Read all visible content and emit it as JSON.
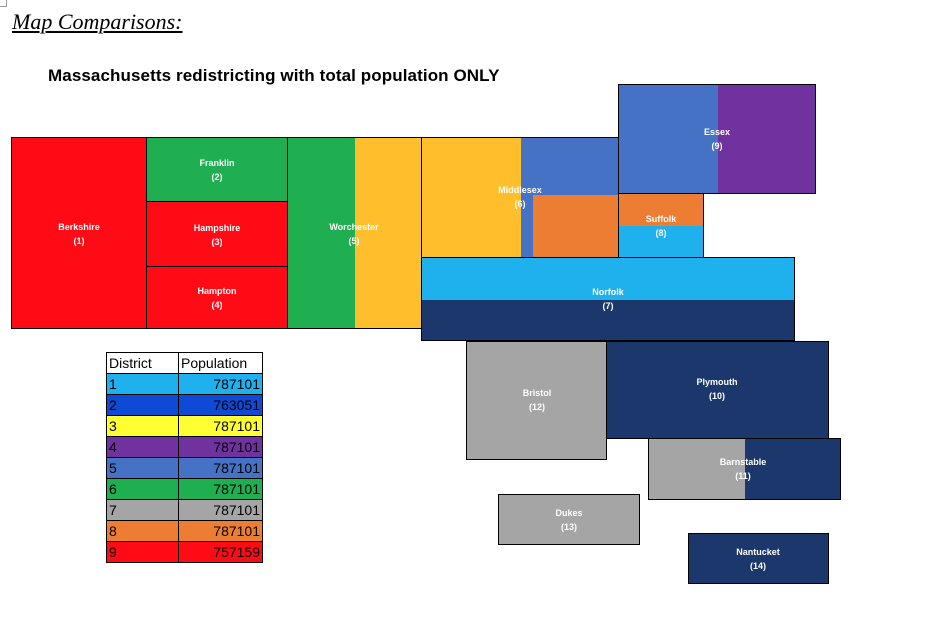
{
  "heading": "Map Comparisons:",
  "map_title": "Massachusetts redistricting with total population ONLY",
  "colors": {
    "red": "#ff0b16",
    "green": "#1fae50",
    "yellow": "#ffbf2c",
    "blue": "#4572c4",
    "purple": "#6f329e",
    "orange": "#ed7d33",
    "lightblue": "#1fb0ee",
    "navy": "#1b376b",
    "gray": "#a5a5a5"
  },
  "counties": [
    {
      "name": "Berkshire",
      "num": "(1)"
    },
    {
      "name": "Franklin",
      "num": "(2)"
    },
    {
      "name": "Hampshire",
      "num": "(3)"
    },
    {
      "name": "Hampton",
      "num": "(4)"
    },
    {
      "name": "Worchester",
      "num": "(5)"
    },
    {
      "name": "Middlesex",
      "num": "(6)"
    },
    {
      "name": "Norfolk",
      "num": "(7)"
    },
    {
      "name": "Suffolk",
      "num": "(8)"
    },
    {
      "name": "Essex",
      "num": "(9)"
    },
    {
      "name": "Plymouth",
      "num": "(10)"
    },
    {
      "name": "Barnstable",
      "num": "(11)"
    },
    {
      "name": "Bristol",
      "num": "(12)"
    },
    {
      "name": "Dukes",
      "num": "(13)"
    },
    {
      "name": "Nantucket",
      "num": "(14)"
    }
  ],
  "legend": {
    "col_district": "District",
    "col_population": "Population",
    "rows": [
      {
        "district": "1",
        "population": "787101",
        "color": "#1fb0ee"
      },
      {
        "district": "2",
        "population": "763051",
        "color": "#0f4ad6"
      },
      {
        "district": "3",
        "population": "787101",
        "color": "#ffff33"
      },
      {
        "district": "4",
        "population": "787101",
        "color": "#6f329e"
      },
      {
        "district": "5",
        "population": "787101",
        "color": "#4572c4"
      },
      {
        "district": "6",
        "population": "787101",
        "color": "#1fae50"
      },
      {
        "district": "7",
        "population": "787101",
        "color": "#a5a5a5"
      },
      {
        "district": "8",
        "population": "787101",
        "color": "#ed7d33"
      },
      {
        "district": "9",
        "population": "757159",
        "color": "#ff0b16"
      }
    ]
  }
}
